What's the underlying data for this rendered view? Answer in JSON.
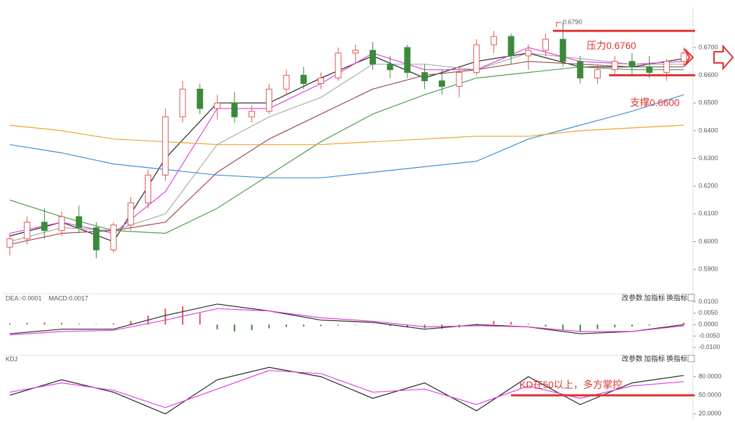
{
  "chart_data": [
    {
      "type": "candlestick",
      "open": [
        0.598,
        0.601,
        0.607,
        0.604,
        0.609,
        0.605,
        0.597,
        0.606,
        0.614,
        0.624,
        0.645,
        0.655,
        0.648,
        0.65,
        0.645,
        0.647,
        0.655,
        0.66,
        0.657,
        0.659,
        0.668,
        0.669,
        0.664,
        0.67,
        0.661,
        0.658,
        0.656,
        0.661,
        0.671,
        0.674,
        0.667,
        0.669,
        0.673,
        0.665,
        0.659,
        0.662,
        0.665,
        0.663,
        0.661,
        0.665
      ],
      "high": [
        0.603,
        0.609,
        0.612,
        0.611,
        0.613,
        0.607,
        0.607,
        0.616,
        0.626,
        0.648,
        0.658,
        0.657,
        0.653,
        0.654,
        0.649,
        0.657,
        0.662,
        0.663,
        0.661,
        0.67,
        0.671,
        0.672,
        0.667,
        0.671,
        0.664,
        0.662,
        0.663,
        0.673,
        0.676,
        0.675,
        0.671,
        0.675,
        0.679,
        0.667,
        0.664,
        0.667,
        0.668,
        0.667,
        0.666,
        0.67
      ],
      "low": [
        0.595,
        0.599,
        0.601,
        0.602,
        0.603,
        0.594,
        0.596,
        0.604,
        0.612,
        0.622,
        0.643,
        0.646,
        0.644,
        0.643,
        0.643,
        0.646,
        0.653,
        0.655,
        0.655,
        0.658,
        0.664,
        0.662,
        0.659,
        0.659,
        0.655,
        0.653,
        0.652,
        0.66,
        0.668,
        0.664,
        0.662,
        0.667,
        0.663,
        0.657,
        0.657,
        0.66,
        0.66,
        0.659,
        0.658,
        0.663
      ],
      "close": [
        0.601,
        0.607,
        0.604,
        0.609,
        0.605,
        0.597,
        0.606,
        0.614,
        0.624,
        0.645,
        0.655,
        0.648,
        0.65,
        0.645,
        0.647,
        0.655,
        0.66,
        0.657,
        0.659,
        0.668,
        0.669,
        0.664,
        0.662,
        0.661,
        0.658,
        0.656,
        0.661,
        0.671,
        0.674,
        0.667,
        0.669,
        0.673,
        0.665,
        0.659,
        0.662,
        0.665,
        0.663,
        0.661,
        0.665,
        0.668
      ],
      "up_color": "#e05555",
      "down_color": "#3a8a3a",
      "series": [
        {
          "color": "#222222",
          "x": [
            0,
            3,
            6,
            9,
            12,
            15,
            18,
            21,
            24,
            27,
            30,
            33,
            36,
            39
          ],
          "values": [
            0.602,
            0.607,
            0.6,
            0.63,
            0.65,
            0.65,
            0.659,
            0.667,
            0.659,
            0.665,
            0.668,
            0.663,
            0.663,
            0.666
          ]
        },
        {
          "color": "#e040e0",
          "x": [
            0,
            3,
            6,
            9,
            12,
            15,
            18,
            21,
            24,
            27,
            30,
            33,
            36,
            39
          ],
          "values": [
            0.603,
            0.607,
            0.603,
            0.618,
            0.648,
            0.648,
            0.657,
            0.668,
            0.662,
            0.662,
            0.67,
            0.665,
            0.664,
            0.665
          ]
        },
        {
          "color": "#aaaaaa",
          "x": [
            0,
            3,
            6,
            9,
            12,
            15,
            18,
            21,
            24,
            27,
            30,
            33,
            36,
            39
          ],
          "values": [
            0.6,
            0.605,
            0.604,
            0.61,
            0.635,
            0.645,
            0.652,
            0.664,
            0.664,
            0.662,
            0.668,
            0.666,
            0.664,
            0.664
          ]
        },
        {
          "color": "#9a4a4a",
          "x": [
            0,
            3,
            6,
            9,
            12,
            15,
            18,
            21,
            24,
            27,
            30,
            33,
            36,
            39
          ],
          "values": [
            0.599,
            0.603,
            0.604,
            0.607,
            0.625,
            0.637,
            0.646,
            0.655,
            0.66,
            0.662,
            0.665,
            0.664,
            0.663,
            0.663
          ]
        },
        {
          "color": "#4aa04a",
          "x": [
            0,
            3,
            6,
            9,
            12,
            15,
            18,
            21,
            24,
            27,
            30,
            33,
            36,
            39
          ],
          "values": [
            0.615,
            0.609,
            0.604,
            0.603,
            0.612,
            0.624,
            0.636,
            0.646,
            0.653,
            0.659,
            0.661,
            0.663,
            0.662,
            0.662
          ]
        },
        {
          "color": "#3a8fd8",
          "x": [
            0,
            3,
            6,
            9,
            12,
            15,
            18,
            21,
            24,
            27,
            30,
            33,
            36,
            39
          ],
          "values": [
            0.635,
            0.632,
            0.628,
            0.626,
            0.624,
            0.623,
            0.623,
            0.625,
            0.627,
            0.629,
            0.637,
            0.642,
            0.647,
            0.653
          ]
        },
        {
          "color": "#f0a030",
          "x": [
            0,
            3,
            6,
            9,
            12,
            15,
            18,
            21,
            24,
            27,
            30,
            33,
            36,
            39
          ],
          "values": [
            0.642,
            0.64,
            0.637,
            0.636,
            0.635,
            0.635,
            0.635,
            0.636,
            0.637,
            0.638,
            0.638,
            0.64,
            0.641,
            0.642
          ]
        }
      ],
      "ylim": [
        0.5817,
        0.6821
      ],
      "yticks": [
        {
          "value": 0.67,
          "label": "0.6700"
        },
        {
          "value": 0.66,
          "label": "0.6600"
        },
        {
          "value": 0.65,
          "label": "0.6500"
        },
        {
          "value": 0.64,
          "label": "0.6400"
        },
        {
          "value": 0.63,
          "label": "0.6300"
        },
        {
          "value": 0.62,
          "label": "0.6200"
        },
        {
          "value": 0.61,
          "label": "0.6100"
        },
        {
          "value": 0.6,
          "label": "0.6000"
        },
        {
          "value": 0.59,
          "label": "0.5900"
        }
      ],
      "high_marker": {
        "value": 0.679,
        "label": "0.6790"
      },
      "resistance": {
        "value": 0.676,
        "label": "压力0.6760"
      },
      "support": {
        "value": 0.66,
        "label": "支撑0.6600"
      }
    },
    {
      "type": "macd",
      "readouts": [
        "DEA:-0.0001",
        "MACD:0.0017"
      ],
      "buttons": [
        "改参数",
        "加指标",
        "换指标"
      ],
      "bars": [
        0.0006,
        0.0008,
        0.001,
        0.0008,
        0.0004,
        0.0002,
        0.0006,
        0.0016,
        0.004,
        0.007,
        0.008,
        0.005,
        -0.002,
        -0.003,
        -0.0024,
        -0.0016,
        -0.001,
        -0.0008,
        -0.0006,
        -0.0004,
        -0.0002,
        0.0002,
        -0.0006,
        -0.0012,
        -0.0016,
        -0.0018,
        -0.0012,
        0.0004,
        0.0016,
        0.0012,
        0.0004,
        -0.0008,
        -0.0024,
        -0.0032,
        -0.002,
        -0.0012,
        -0.0008,
        -0.0004,
        0.0002,
        0.0008
      ],
      "series": [
        {
          "color": "#222222",
          "x": [
            0,
            3,
            6,
            9,
            12,
            15,
            18,
            21,
            24,
            27,
            30,
            33,
            36,
            39
          ],
          "values": [
            -0.004,
            -0.002,
            -0.002,
            0.004,
            0.009,
            0.006,
            0.002,
            0.001,
            -0.002,
            0.0,
            -0.001,
            -0.004,
            -0.003,
            0.0
          ]
        },
        {
          "color": "#e040e0",
          "x": [
            0,
            3,
            6,
            9,
            12,
            15,
            18,
            21,
            24,
            27,
            30,
            33,
            36,
            39
          ],
          "values": [
            -0.0045,
            -0.003,
            -0.0025,
            0.002,
            0.007,
            0.006,
            0.003,
            0.0015,
            -0.001,
            -0.0005,
            -0.001,
            -0.003,
            -0.003,
            -0.0005
          ]
        }
      ],
      "ylim": [
        -0.0125,
        0.012
      ],
      "yticks": [
        {
          "value": 0.01,
          "label": "0.0100"
        },
        {
          "value": 0.005,
          "label": "0.0050"
        },
        {
          "value": 0,
          "label": "0.0000"
        },
        {
          "value": -0.005,
          "label": "-0.0050"
        },
        {
          "value": -0.01,
          "label": "-0.0100"
        }
      ]
    },
    {
      "type": "line",
      "readouts": [
        "KDJ"
      ],
      "buttons": [
        "改参数",
        "加指标",
        "换指标"
      ],
      "series": [
        {
          "color": "#222222",
          "x": [
            0,
            3,
            6,
            9,
            12,
            15,
            18,
            21,
            24,
            27,
            30,
            33,
            36,
            39
          ],
          "values": [
            50,
            75,
            55,
            20,
            75,
            95,
            80,
            45,
            70,
            25,
            80,
            35,
            70,
            82
          ]
        },
        {
          "color": "#e040e0",
          "x": [
            0,
            3,
            6,
            9,
            12,
            15,
            18,
            21,
            24,
            27,
            30,
            33,
            36,
            39
          ],
          "values": [
            55,
            70,
            58,
            30,
            60,
            90,
            85,
            55,
            60,
            35,
            65,
            45,
            65,
            72
          ]
        }
      ],
      "ylim": [
        13,
        110
      ],
      "yticks": [
        {
          "value": 80,
          "label": "80.0000"
        },
        {
          "value": 50,
          "label": "50.0000"
        },
        {
          "value": 20,
          "label": "20.0000"
        }
      ],
      "level": {
        "value": 50,
        "label": "KD在50以上，多方掌控"
      }
    }
  ]
}
